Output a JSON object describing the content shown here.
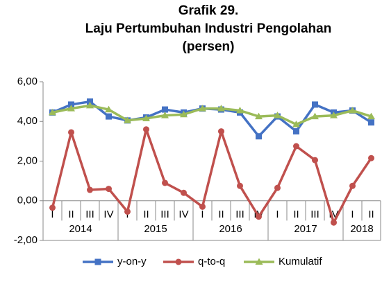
{
  "chart_data": {
    "type": "line",
    "title": [
      "Grafik 29.",
      "Laju Pertumbuhan Industri Pengolahan",
      "(persen)"
    ],
    "categories": [
      "I",
      "II",
      "III",
      "IV",
      "I",
      "II",
      "III",
      "IV",
      "I",
      "II",
      "III",
      "IV",
      "I",
      "II",
      "III",
      "IV",
      "I",
      "II"
    ],
    "category_groups": [
      {
        "name": "2014",
        "size": 4
      },
      {
        "name": "2015",
        "size": 4
      },
      {
        "name": "2016",
        "size": 4
      },
      {
        "name": "2017",
        "size": 4
      },
      {
        "name": "2018",
        "size": 2
      }
    ],
    "series": [
      {
        "name": "y-on-y",
        "color": "#4472c4",
        "marker": "square",
        "values": [
          4.45,
          4.85,
          5.0,
          4.25,
          4.05,
          4.2,
          4.6,
          4.45,
          4.65,
          4.6,
          4.45,
          3.25,
          4.25,
          3.5,
          4.85,
          4.45,
          4.55,
          3.95
        ]
      },
      {
        "name": "q-to-q",
        "color": "#c0504d",
        "marker": "circle",
        "values": [
          -0.35,
          3.45,
          0.55,
          0.6,
          -0.55,
          3.6,
          0.9,
          0.4,
          -0.3,
          3.5,
          0.75,
          -0.8,
          0.65,
          2.75,
          2.05,
          -1.1,
          0.75,
          2.15
        ]
      },
      {
        "name": "Kumulatif",
        "color": "#9bbb59",
        "marker": "triangle",
        "values": [
          4.45,
          4.65,
          4.8,
          4.6,
          4.05,
          4.15,
          4.3,
          4.35,
          4.65,
          4.65,
          4.55,
          4.25,
          4.3,
          3.85,
          4.25,
          4.3,
          4.55,
          4.25
        ]
      }
    ],
    "ylim": [
      -2,
      6
    ],
    "yticks": [
      {
        "value": -2,
        "label": "-2,00"
      },
      {
        "value": 0,
        "label": "0,00"
      },
      {
        "value": 2,
        "label": "2,00"
      },
      {
        "value": 4,
        "label": "4,00"
      },
      {
        "value": 6,
        "label": "6,00"
      }
    ],
    "legend": "bottom"
  }
}
